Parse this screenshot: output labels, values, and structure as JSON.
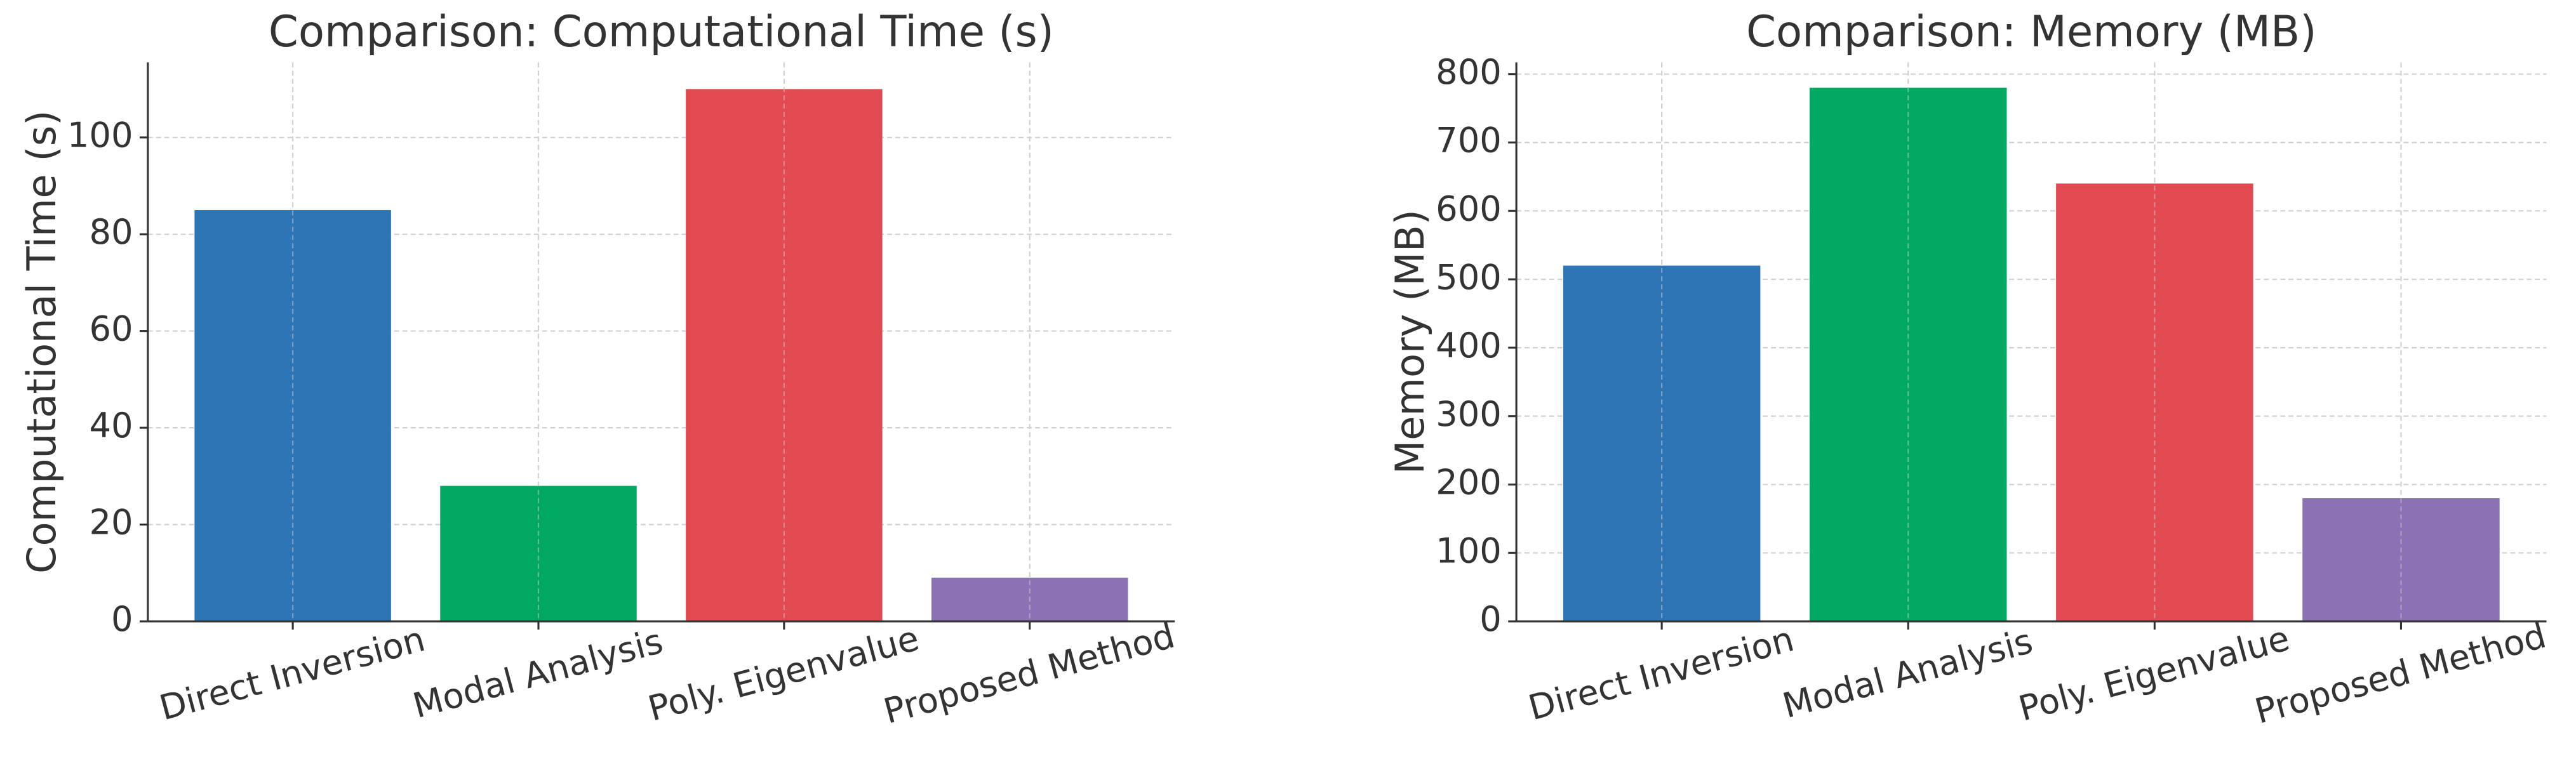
{
  "chart_data": [
    {
      "type": "bar",
      "title": "Comparison: Computational Time (s)",
      "y_label": "Computational Time (s)",
      "categories": [
        "Direct Inversion",
        "Modal Analysis",
        "Poly. Eigenvalue",
        "Proposed Method"
      ],
      "values": [
        85,
        28,
        110,
        9
      ],
      "colors": [
        "#2e75b6",
        "#00a862",
        "#e24a52",
        "#8a72b5"
      ],
      "ylim": [
        0,
        115.5
      ],
      "yticks": [
        0,
        20,
        40,
        60,
        80,
        100
      ],
      "grid": true
    },
    {
      "type": "bar",
      "title": "Comparison: Memory (MB)",
      "y_label": "Memory (MB)",
      "categories": [
        "Direct Inversion",
        "Modal Analysis",
        "Poly. Eigenvalue",
        "Proposed Method"
      ],
      "values": [
        520,
        780,
        640,
        180
      ],
      "colors": [
        "#2e75b6",
        "#00a862",
        "#e24a52",
        "#8a72b5"
      ],
      "ylim": [
        0,
        817
      ],
      "yticks": [
        0,
        100,
        200,
        300,
        400,
        500,
        600,
        700,
        800
      ],
      "grid": true
    }
  ]
}
